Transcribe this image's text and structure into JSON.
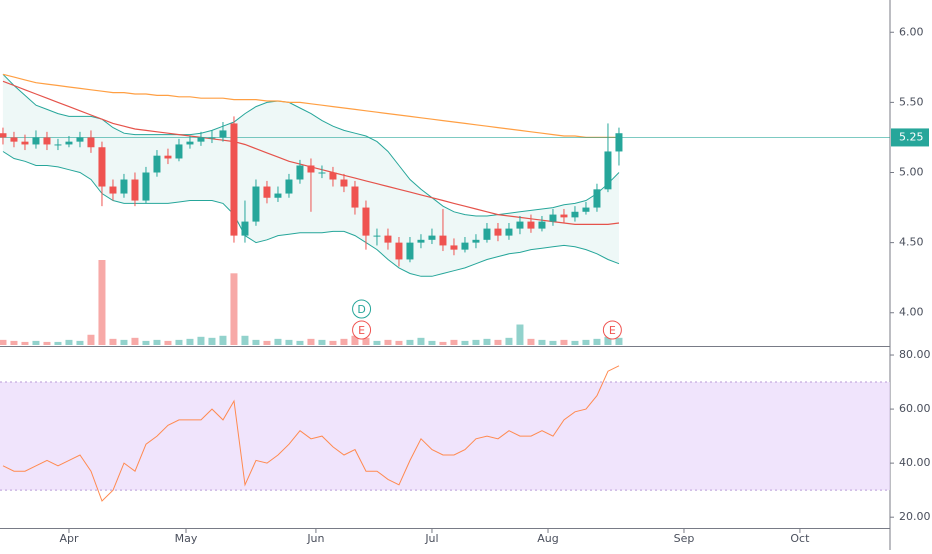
{
  "chart_data": [
    {
      "type": "candlestick",
      "xlim": [
        -0.27,
        80.64
      ],
      "ylim": [
        3.77,
        6.23
      ],
      "yticks": [
        {
          "value": 4,
          "label": "4.00"
        },
        {
          "value": 4.5,
          "label": "4.50"
        },
        {
          "value": 5,
          "label": "5.00"
        },
        {
          "value": 5.5,
          "label": "5.50"
        },
        {
          "value": 6,
          "label": "6.00"
        }
      ],
      "up_color": "#26a69a",
      "down_color": "#ef5350",
      "open": [
        5.28,
        5.25,
        5.22,
        5.2,
        5.25,
        5.2,
        5.2,
        5.22,
        5.25,
        5.18,
        4.9,
        4.85,
        4.95,
        4.8,
        5.0,
        5.12,
        5.1,
        5.2,
        5.22,
        5.25,
        5.25,
        5.35,
        4.55,
        4.65,
        4.9,
        4.82,
        4.85,
        4.95,
        5.05,
        5.0,
        5.0,
        4.95,
        4.9,
        4.75,
        4.55,
        4.55,
        4.5,
        4.38,
        4.5,
        4.52,
        4.55,
        4.48,
        4.45,
        4.5,
        4.52,
        4.6,
        4.55,
        4.6,
        4.65,
        4.6,
        4.65,
        4.7,
        4.68,
        4.72,
        4.75,
        4.88,
        5.15
      ],
      "high": [
        5.32,
        5.29,
        5.27,
        5.3,
        5.29,
        5.24,
        5.26,
        5.29,
        5.3,
        5.22,
        4.95,
        4.99,
        5.0,
        5.04,
        5.16,
        5.17,
        5.24,
        5.26,
        5.29,
        5.3,
        5.36,
        5.4,
        4.8,
        4.95,
        4.94,
        4.9,
        4.99,
        5.09,
        5.1,
        5.05,
        5.04,
        4.99,
        4.94,
        4.8,
        4.6,
        4.6,
        4.54,
        4.54,
        4.56,
        4.6,
        4.74,
        4.53,
        4.54,
        4.56,
        4.64,
        4.64,
        4.64,
        4.69,
        4.7,
        4.69,
        4.74,
        4.74,
        4.76,
        4.79,
        4.92,
        5.35,
        5.32
      ],
      "low": [
        5.2,
        5.18,
        5.16,
        5.17,
        5.16,
        5.16,
        5.18,
        5.18,
        5.14,
        4.76,
        4.8,
        4.82,
        4.76,
        4.78,
        4.97,
        5.06,
        5.08,
        5.17,
        5.19,
        5.21,
        5.22,
        4.5,
        4.5,
        4.62,
        4.78,
        4.79,
        4.82,
        4.92,
        4.72,
        4.96,
        4.9,
        4.86,
        4.7,
        4.45,
        4.48,
        4.45,
        4.33,
        4.36,
        4.46,
        4.49,
        4.44,
        4.41,
        4.43,
        4.46,
        4.5,
        4.51,
        4.52,
        4.56,
        4.57,
        4.58,
        4.62,
        4.64,
        4.65,
        4.7,
        4.72,
        4.86,
        5.05
      ],
      "close": [
        5.25,
        5.22,
        5.2,
        5.25,
        5.2,
        5.2,
        5.22,
        5.25,
        5.18,
        4.9,
        4.85,
        4.95,
        4.8,
        5.0,
        5.12,
        5.1,
        5.2,
        5.22,
        5.25,
        5.25,
        5.3,
        4.55,
        4.65,
        4.9,
        4.82,
        4.85,
        4.95,
        5.05,
        5.0,
        5.0,
        4.95,
        4.9,
        4.75,
        4.55,
        4.55,
        4.5,
        4.38,
        4.5,
        4.52,
        4.55,
        4.48,
        4.45,
        4.5,
        4.52,
        4.6,
        4.55,
        4.6,
        4.65,
        4.6,
        4.65,
        4.7,
        4.68,
        4.72,
        4.75,
        4.88,
        5.15,
        5.28
      ],
      "volume": [
        0.5,
        0.4,
        0.3,
        0.4,
        0.3,
        0.3,
        0.5,
        0.4,
        1.0,
        8.3,
        0.6,
        0.5,
        0.7,
        0.4,
        0.5,
        0.4,
        0.5,
        0.6,
        0.8,
        0.7,
        0.9,
        7.0,
        0.9,
        0.5,
        0.4,
        0.6,
        0.5,
        0.4,
        0.6,
        0.5,
        0.4,
        0.6,
        0.9,
        0.7,
        0.4,
        0.5,
        0.4,
        0.5,
        0.7,
        0.4,
        0.3,
        0.5,
        0.4,
        0.5,
        0.6,
        0.5,
        0.7,
        2.0,
        0.6,
        0.5,
        0.4,
        0.5,
        0.4,
        0.5,
        0.6,
        0.8,
        0.7
      ],
      "bands": {
        "color": "#26a69a",
        "upper": [
          5.7,
          5.62,
          5.55,
          5.48,
          5.45,
          5.42,
          5.4,
          5.4,
          5.4,
          5.38,
          5.32,
          5.28,
          5.27,
          5.27,
          5.27,
          5.27,
          5.27,
          5.27,
          5.28,
          5.3,
          5.33,
          5.36,
          5.42,
          5.47,
          5.5,
          5.51,
          5.5,
          5.46,
          5.42,
          5.37,
          5.33,
          5.3,
          5.28,
          5.26,
          5.22,
          5.15,
          5.05,
          4.95,
          4.88,
          4.82,
          4.76,
          4.72,
          4.7,
          4.69,
          4.69,
          4.7,
          4.71,
          4.72,
          4.73,
          4.74,
          4.75,
          4.77,
          4.78,
          4.8,
          4.85,
          4.92,
          5.0
        ],
        "lower": [
          5.15,
          5.1,
          5.08,
          5.05,
          5.05,
          5.04,
          5.02,
          5.0,
          4.95,
          4.85,
          4.8,
          4.78,
          4.78,
          4.78,
          4.78,
          4.78,
          4.79,
          4.8,
          4.8,
          4.8,
          4.78,
          4.7,
          4.55,
          4.5,
          4.52,
          4.55,
          4.56,
          4.57,
          4.57,
          4.57,
          4.58,
          4.58,
          4.55,
          4.5,
          4.45,
          4.38,
          4.32,
          4.28,
          4.26,
          4.26,
          4.28,
          4.3,
          4.32,
          4.35,
          4.38,
          4.4,
          4.42,
          4.43,
          4.45,
          4.46,
          4.47,
          4.48,
          4.47,
          4.45,
          4.42,
          4.38,
          4.35
        ]
      },
      "overlays": [
        {
          "color": "#ff9f43",
          "values": [
            5.7,
            5.68,
            5.66,
            5.64,
            5.63,
            5.62,
            5.61,
            5.6,
            5.59,
            5.58,
            5.57,
            5.57,
            5.56,
            5.56,
            5.55,
            5.55,
            5.54,
            5.54,
            5.53,
            5.53,
            5.53,
            5.52,
            5.52,
            5.52,
            5.51,
            5.51,
            5.5,
            5.5,
            5.49,
            5.48,
            5.47,
            5.46,
            5.45,
            5.44,
            5.43,
            5.42,
            5.41,
            5.4,
            5.39,
            5.38,
            5.37,
            5.36,
            5.35,
            5.34,
            5.33,
            5.32,
            5.31,
            5.3,
            5.29,
            5.28,
            5.27,
            5.26,
            5.26,
            5.25,
            5.25,
            5.25,
            5.25
          ]
        },
        {
          "color": "#e5534b",
          "values": [
            5.65,
            5.62,
            5.59,
            5.56,
            5.53,
            5.5,
            5.47,
            5.44,
            5.41,
            5.38,
            5.35,
            5.33,
            5.31,
            5.3,
            5.29,
            5.28,
            5.27,
            5.26,
            5.25,
            5.24,
            5.23,
            5.22,
            5.2,
            5.17,
            5.14,
            5.11,
            5.08,
            5.06,
            5.04,
            5.02,
            5.0,
            4.98,
            4.96,
            4.94,
            4.92,
            4.9,
            4.88,
            4.86,
            4.84,
            4.82,
            4.8,
            4.78,
            4.76,
            4.74,
            4.72,
            4.7,
            4.69,
            4.68,
            4.67,
            4.66,
            4.65,
            4.64,
            4.63,
            4.63,
            4.63,
            4.63,
            4.64
          ]
        }
      ],
      "last_price": {
        "value": 5.25,
        "label": "5.25"
      },
      "events": [
        {
          "label": "D",
          "x": 32.6,
          "color": "#26a69a",
          "row": 0
        },
        {
          "label": "E",
          "x": 32.6,
          "color": "#ef5350",
          "row": 1
        },
        {
          "label": "E",
          "x": 55.4,
          "color": "#ef5350",
          "row": 1
        }
      ]
    },
    {
      "type": "line",
      "xlim": [
        -0.27,
        80.64
      ],
      "ylim": [
        16,
        82.6
      ],
      "yticks": [
        {
          "value": 20,
          "label": "20.00"
        },
        {
          "value": 40,
          "label": "40.00"
        },
        {
          "value": 60,
          "label": "60.00"
        },
        {
          "value": 80,
          "label": "80.00"
        }
      ],
      "xticks": [
        {
          "value": 6,
          "label": "Apr"
        },
        {
          "value": 16.64,
          "label": "May"
        },
        {
          "value": 28.45,
          "label": "Jun"
        },
        {
          "value": 39,
          "label": "Jul"
        },
        {
          "value": 49.55,
          "label": "Aug"
        },
        {
          "value": 61.91,
          "label": "Sep"
        },
        {
          "value": 72.45,
          "label": "Oct"
        }
      ],
      "band": [
        30,
        70
      ],
      "band_color": "#e9d8fb",
      "color": "#ff8a50",
      "values": [
        39,
        37,
        37,
        39,
        41,
        39,
        41,
        43,
        37,
        26,
        30,
        40,
        37,
        47,
        50,
        54,
        56,
        56,
        56,
        60,
        56,
        63,
        32,
        41,
        40,
        43,
        47,
        52,
        49,
        50,
        46,
        43,
        45,
        37,
        37,
        34,
        32,
        41,
        49,
        45,
        43,
        43,
        45,
        49,
        50,
        49,
        52,
        50,
        50,
        52,
        50,
        56,
        59,
        60,
        65,
        74,
        76
      ]
    }
  ]
}
